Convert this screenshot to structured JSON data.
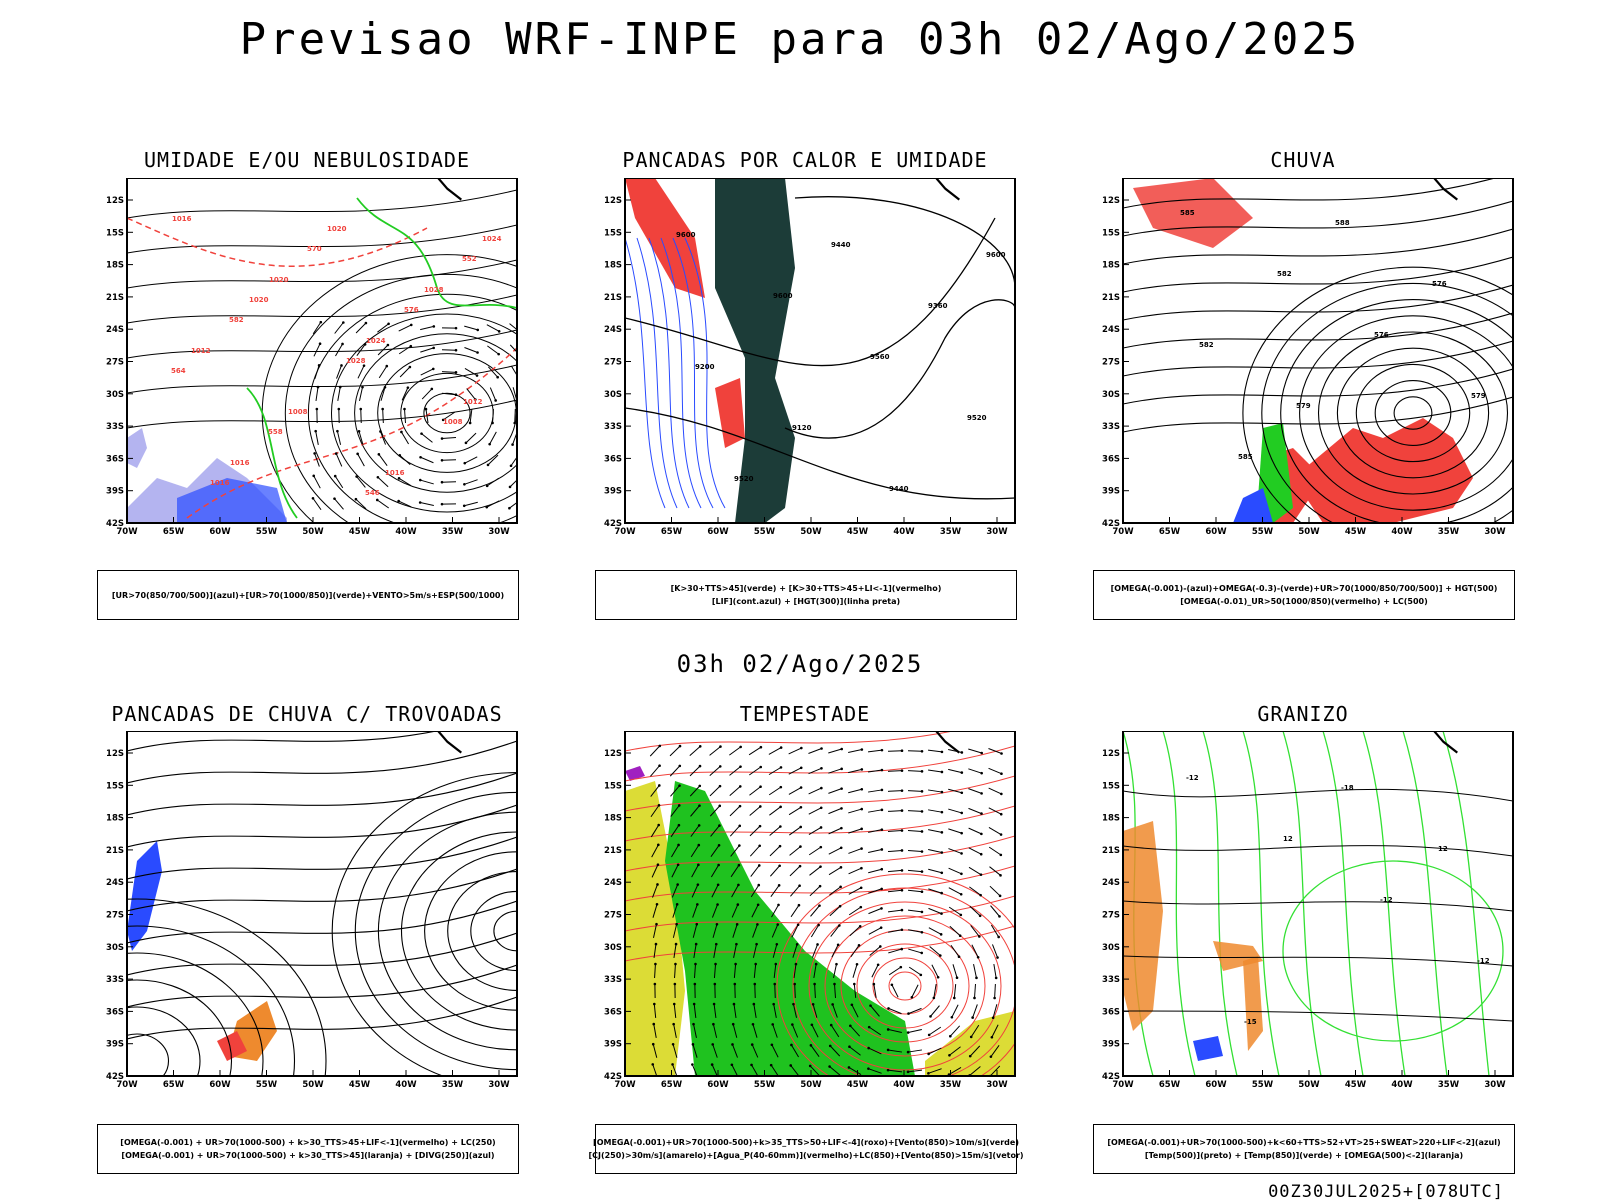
{
  "title": "Previsao WRF-INPE  para 03h 02/Ago/2025",
  "mid_title": "03h 02/Ago/2025",
  "footer": "00Z30JUL2025+[078UTC]",
  "lat_labels": [
    "12S",
    "15S",
    "18S",
    "21S",
    "24S",
    "27S",
    "30S",
    "33S",
    "36S",
    "39S",
    "42S"
  ],
  "lon_labels": [
    "70W",
    "65W",
    "60W",
    "55W",
    "50W",
    "45W",
    "40W",
    "35W",
    "30W"
  ],
  "colors": {
    "red": "#f0423c",
    "green": "#22cc22",
    "blue": "#2a4bff",
    "lavender": "#b4b4f0",
    "dark_teal": "#1c3c38",
    "yellow": "#dcdc36",
    "lime": "#1fc21f",
    "orange": "#ee8a2e",
    "purple": "#a020c0",
    "light_green": "#33e033"
  },
  "panels": [
    {
      "title": "UMIDADE E/OU NEBULOSIDADE",
      "legend": [
        "[UR>70(850/700/500)](azul)+[UR>70(1000/850)](verde)+VENTO>5m/s+ESP(500/1000)"
      ],
      "contour_labels": [
        "1016",
        "1020",
        "1024",
        "1012",
        "1016",
        "1020",
        "1028",
        "1012",
        "1008",
        "1016",
        "1024",
        "1020",
        "1028",
        "1008",
        "1016",
        "570",
        "576",
        "564",
        "558",
        "546",
        "552",
        "582"
      ]
    },
    {
      "title": "PANCADAS POR CALOR E UMIDADE",
      "legend": [
        "[K>30+TTS>45](verde) + [K>30+TTS>45+LI<-1](vermelho)",
        "[LIF](cont.azul) + [HGT(300)](linha preta)"
      ],
      "contour_labels": [
        "9600",
        "9600",
        "9560",
        "9520",
        "9520",
        "9440",
        "9360",
        "9200",
        "9120",
        "9440",
        "9600"
      ]
    },
    {
      "title": "CHUVA",
      "legend": [
        "[OMEGA(-0.001)-(azul)+OMEGA(-0.3)-(verde)+UR>70(1000/850/700/500)] + HGT(500)",
        "[OMEGA(-0.01)_UR>50(1000/850)(vermelho) + LC(500)"
      ],
      "contour_labels": [
        "585",
        "582",
        "576",
        "579",
        "585",
        "588",
        "576",
        "582",
        "579"
      ]
    },
    {
      "title": "PANCADAS DE CHUVA C/ TROVOADAS",
      "legend": [
        "[OMEGA(-0.001) + UR>70(1000-500) + k>30_TTS>45+LIF<-1](vermelho) + LC(250)",
        "[OMEGA(-0.001) + UR>70(1000-500) + k>30_TTS>45](laranja) + [DIVG(250)](azul)"
      ],
      "contour_labels": []
    },
    {
      "title": "TEMPESTADE",
      "legend": [
        "[OMEGA(-0.001)+UR>70(1000-500)+k>35_TTS>50+LIF<-4](roxo)+[Vento(850)>10m/s](verde)",
        "[CJ(250)>30m/s](amarelo)+[Agua_P(40-60mm)](vermelho)+LC(850)+[Vento(850)>15m/s](vetor)"
      ],
      "contour_labels": []
    },
    {
      "title": "GRANIZO",
      "legend": [
        "[OMEGA(-0.001)+UR>70(1000-500)+k<60+TTS>52+VT>25+SWEAT>220+LIF<-2](azul)",
        "[Temp(500)](preto) + [Temp(850)](verde) + [OMEGA(500)<-2](laranja)"
      ],
      "contour_labels": [
        "-12",
        "12",
        "-12",
        "-12",
        "-15",
        "-18",
        "12"
      ]
    }
  ]
}
